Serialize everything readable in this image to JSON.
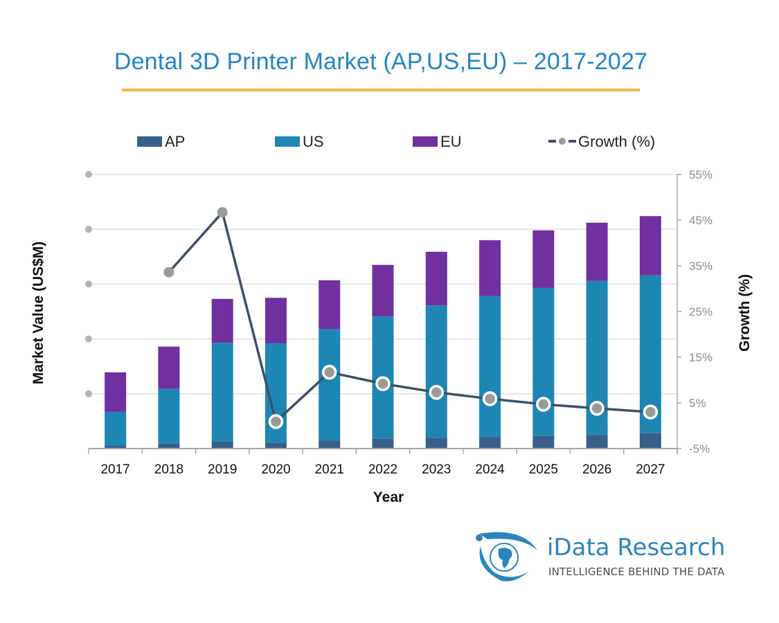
{
  "title": "Dental 3D Printer Market (AP,US,EU)  –  2017-2027",
  "colors": {
    "title": "#2385c4",
    "underline": "#f2b84b",
    "AP": "#375f8a",
    "US": "#1e86b3",
    "EU": "#7030a0",
    "growth_line": "#3d4f6a",
    "growth_marker": "#9a9a9a",
    "grid": "#d9d9d9",
    "axis": "#a6a6a6"
  },
  "chart_data": {
    "type": "bar",
    "stacked": true,
    "title": "Dental 3D Printer Market (AP,US,EU)  –  2017-2027",
    "xlabel": "Year",
    "ylabel": "Market Value (US$M)",
    "y2label": "Growth (%)",
    "categories": [
      "2017",
      "2018",
      "2019",
      "2020",
      "2021",
      "2022",
      "2023",
      "2024",
      "2025",
      "2026",
      "2027"
    ],
    "ylim": [
      0,
      5
    ],
    "yticks_note": "left axis tick labels hidden (shown as grey dots)",
    "y2lim": [
      -5,
      55
    ],
    "y2ticks": [
      "-5%",
      "5%",
      "15%",
      "25%",
      "35%",
      "45%",
      "55%"
    ],
    "y2tick_values": [
      -5,
      5,
      15,
      25,
      35,
      45,
      55
    ],
    "grid": true,
    "legend_position": "top",
    "legend": [
      "AP",
      "US",
      "EU",
      "Growth (%)"
    ],
    "series": [
      {
        "name": "AP",
        "kind": "bar",
        "values": [
          0.05,
          0.09,
          0.13,
          0.11,
          0.15,
          0.18,
          0.19,
          0.21,
          0.23,
          0.25,
          0.28
        ]
      },
      {
        "name": "US",
        "kind": "bar",
        "values": [
          0.62,
          1.0,
          1.8,
          1.81,
          2.03,
          2.23,
          2.42,
          2.57,
          2.7,
          2.81,
          2.88
        ]
      },
      {
        "name": "EU",
        "kind": "bar",
        "values": [
          0.72,
          0.77,
          0.8,
          0.83,
          0.89,
          0.94,
          0.98,
          1.02,
          1.05,
          1.06,
          1.08
        ]
      },
      {
        "name": "Growth (%)",
        "kind": "line",
        "axis": "right",
        "values": [
          null,
          33.6,
          46.7,
          0.9,
          11.7,
          9.2,
          7.3,
          5.9,
          4.7,
          3.8,
          3.0
        ]
      }
    ]
  },
  "logo": {
    "name": "iData Research",
    "tagline": "INTELLIGENCE BEHIND THE DATA"
  }
}
